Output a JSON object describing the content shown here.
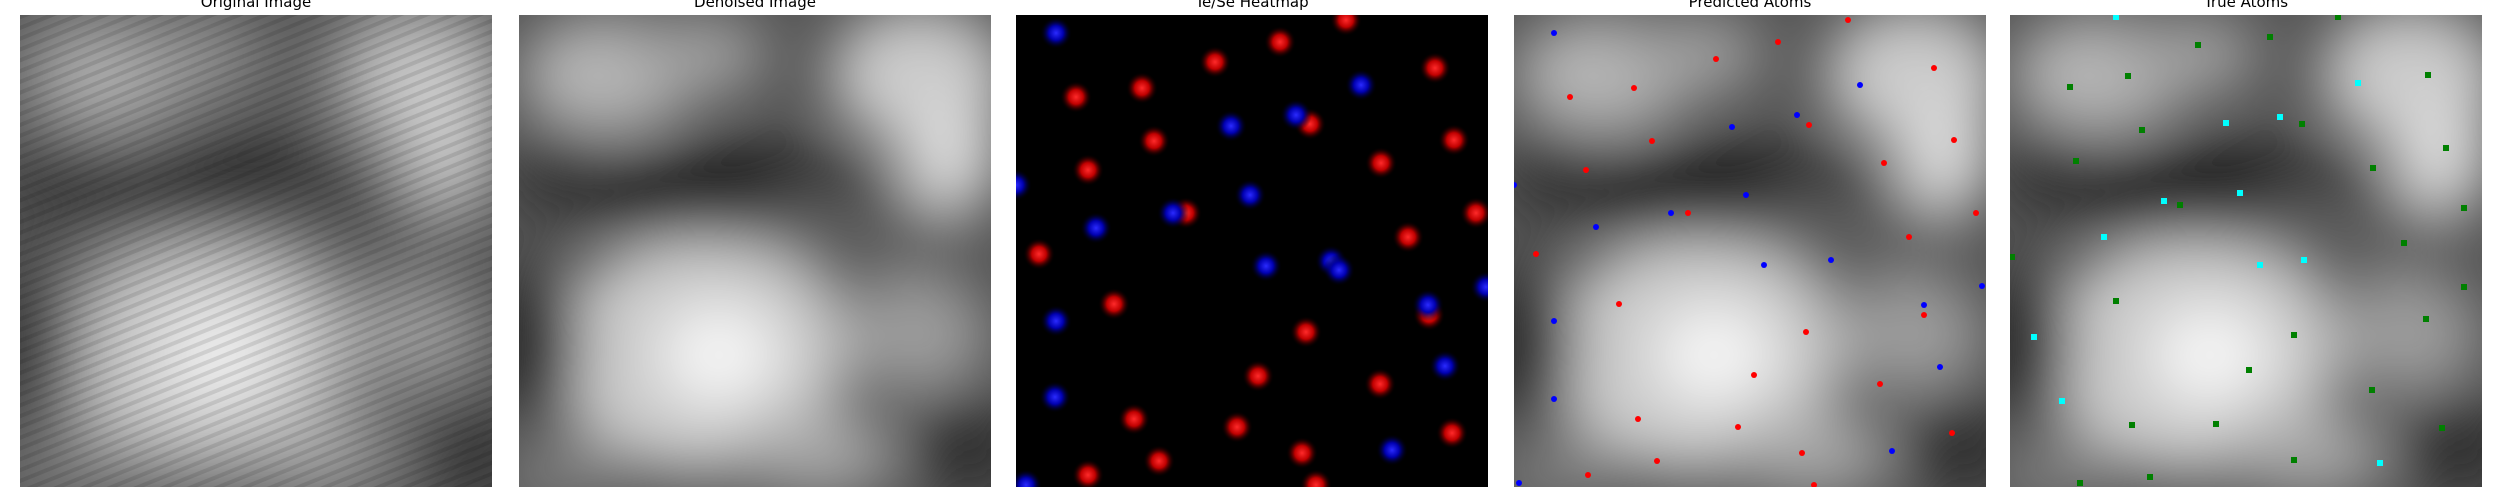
{
  "panels": [
    {
      "title": "Original Image"
    },
    {
      "title": "Denoised Image"
    },
    {
      "title": "Te/Se Heatmap"
    },
    {
      "title": "Predicted Atoms"
    },
    {
      "title": "True Atoms"
    }
  ],
  "colors": {
    "heatmap_te": "#ff1a1a",
    "heatmap_se": "#1a1aff",
    "predicted_te": "#ff0000",
    "predicted_se": "#0000ff",
    "true_a": "#00ffff",
    "true_b": "#008000"
  }
}
